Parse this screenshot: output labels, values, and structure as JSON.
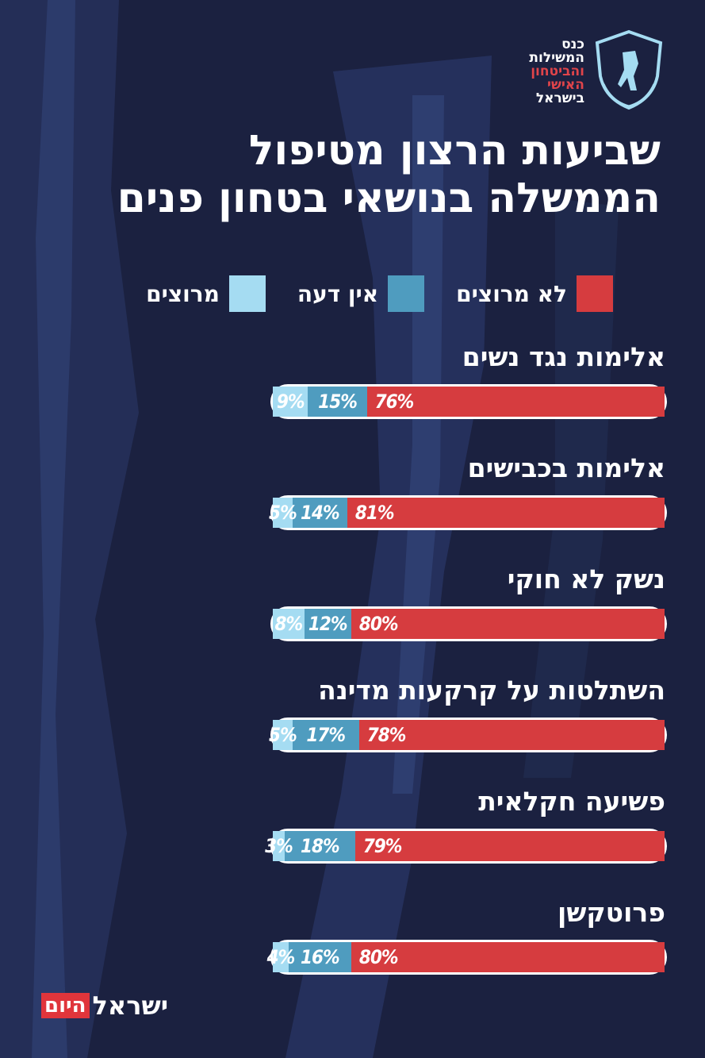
{
  "logo": {
    "lines": [
      "כנס",
      "המשילות",
      "והביטחון",
      "האישי",
      "בישראל"
    ]
  },
  "title": {
    "line1": "שביעות הרצון מטיפול",
    "line2": "הממשלה בנושאי בטחון פנים"
  },
  "colors": {
    "not_satisfied": "#d63c3f",
    "no_opinion": "#4f9cbf",
    "satisfied": "#a5dcf2",
    "background": "#1b2140"
  },
  "legend": [
    {
      "key": "not_satisfied",
      "label": "לא מרוצים",
      "color": "#d63c3f"
    },
    {
      "key": "no_opinion",
      "label": "אין דעה",
      "color": "#4f9cbf"
    },
    {
      "key": "satisfied",
      "label": "מרוצים",
      "color": "#a5dcf2"
    }
  ],
  "chart_data": {
    "type": "bar",
    "orientation": "horizontal-stacked",
    "title": "שביעות הרצון מטיפול הממשלה בנושאי בטחון פנים",
    "categories": [
      "אלימות נגד נשים",
      "אלימות בכבישים",
      "נשק לא חוקי",
      "השתלטות על קרקעות מדינה",
      "פשיעה חקלאית",
      "פרוטקשן"
    ],
    "series": [
      {
        "name": "לא מרוצים",
        "values": [
          76,
          81,
          80,
          78,
          79,
          80
        ]
      },
      {
        "name": "אין דעה",
        "values": [
          15,
          14,
          12,
          17,
          18,
          16
        ]
      },
      {
        "name": "מרוצים",
        "values": [
          9,
          5,
          8,
          5,
          3,
          4
        ]
      }
    ],
    "value_labels": [
      [
        "76%",
        "15%",
        "9%"
      ],
      [
        "81%",
        "14%",
        "5%"
      ],
      [
        "80%",
        "12%",
        "8%"
      ],
      [
        "78%",
        "17%",
        "5%"
      ],
      [
        "79%",
        "18%",
        "3%"
      ],
      [
        "80%",
        "16%",
        "4%"
      ]
    ],
    "legend_position": "top"
  },
  "footer": {
    "brand_main": "ישראל",
    "brand_box": "היום"
  }
}
